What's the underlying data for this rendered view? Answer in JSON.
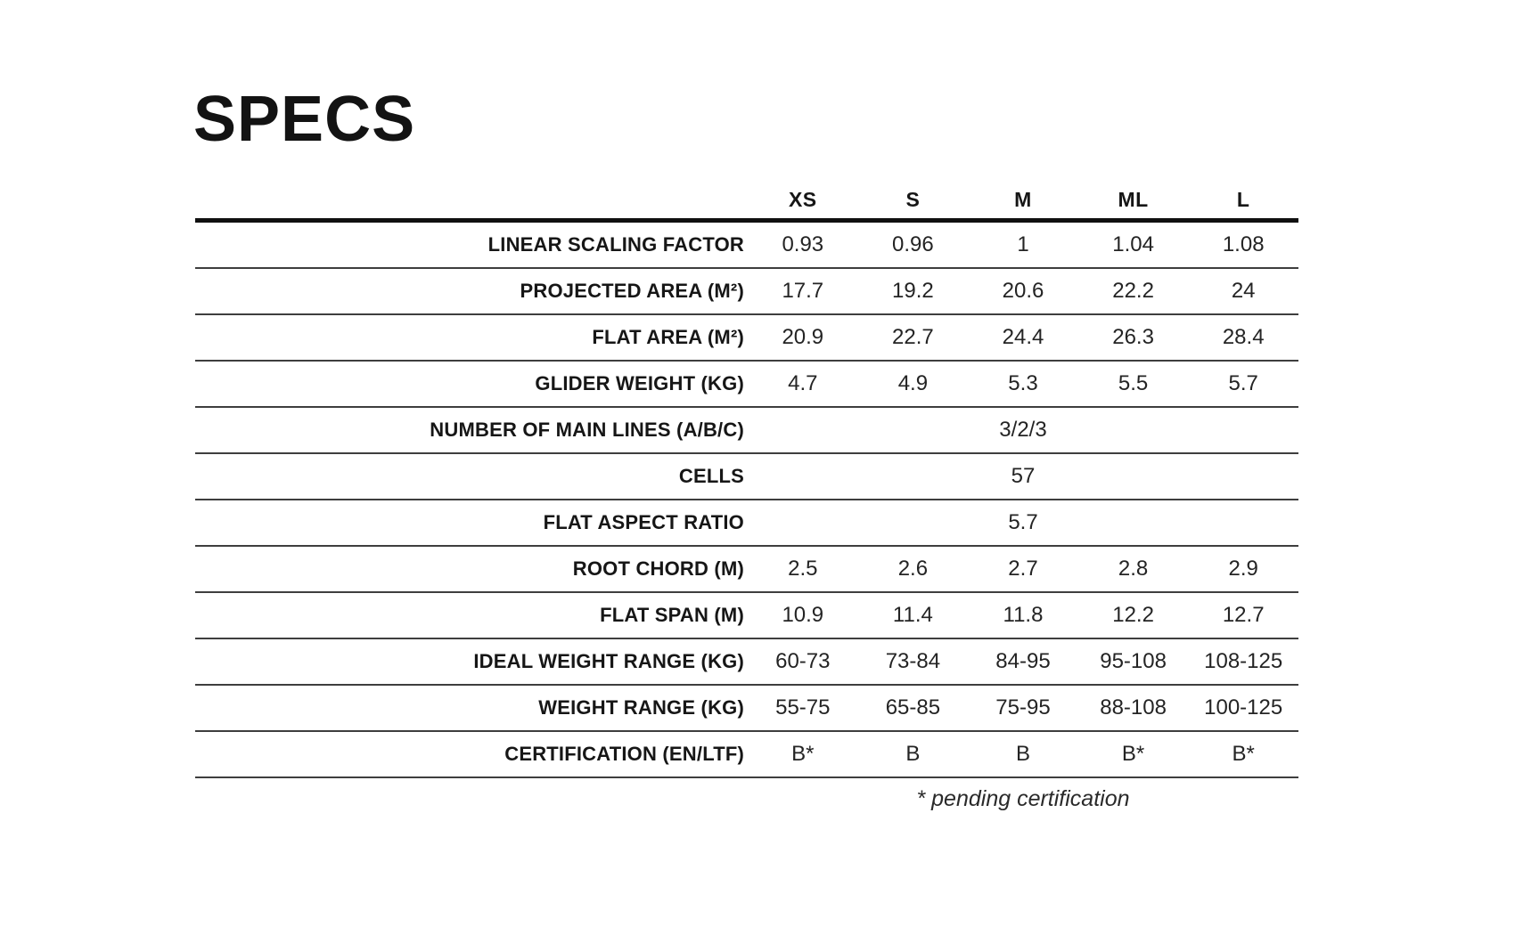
{
  "page": {
    "title": "SPECS",
    "footnote": "* pending certification"
  },
  "table": {
    "columns": [
      "XS",
      "S",
      "M",
      "ML",
      "L"
    ],
    "rows": [
      {
        "label": "LINEAR SCALING FACTOR",
        "values": [
          "0.93",
          "0.96",
          "1",
          "1.04",
          "1.08"
        ]
      },
      {
        "label": "PROJECTED AREA (M²)",
        "values": [
          "17.7",
          "19.2",
          "20.6",
          "22.2",
          "24"
        ]
      },
      {
        "label": "FLAT AREA (M²)",
        "values": [
          "20.9",
          "22.7",
          "24.4",
          "26.3",
          "28.4"
        ]
      },
      {
        "label": "GLIDER WEIGHT (KG)",
        "values": [
          "4.7",
          "4.9",
          "5.3",
          "5.5",
          "5.7"
        ]
      },
      {
        "label": "NUMBER OF MAIN LINES (A/B/C)",
        "span_value": "3/2/3"
      },
      {
        "label": "CELLS",
        "span_value": "57"
      },
      {
        "label": "FLAT ASPECT RATIO",
        "span_value": "5.7"
      },
      {
        "label": "ROOT CHORD (M)",
        "values": [
          "2.5",
          "2.6",
          "2.7",
          "2.8",
          "2.9"
        ]
      },
      {
        "label": "FLAT SPAN (M)",
        "values": [
          "10.9",
          "11.4",
          "11.8",
          "12.2",
          "12.7"
        ]
      },
      {
        "label": "IDEAL WEIGHT RANGE (KG)",
        "values": [
          "60-73",
          "73-84",
          "84-95",
          "95-108",
          "108-125"
        ]
      },
      {
        "label": "WEIGHT RANGE (KG)",
        "values": [
          "55-75",
          "65-85",
          "75-95",
          "88-108",
          "100-125"
        ]
      },
      {
        "label": "CERTIFICATION (EN/LTF)",
        "values": [
          "B*",
          "B",
          "B",
          "B*",
          "B*"
        ]
      }
    ]
  }
}
